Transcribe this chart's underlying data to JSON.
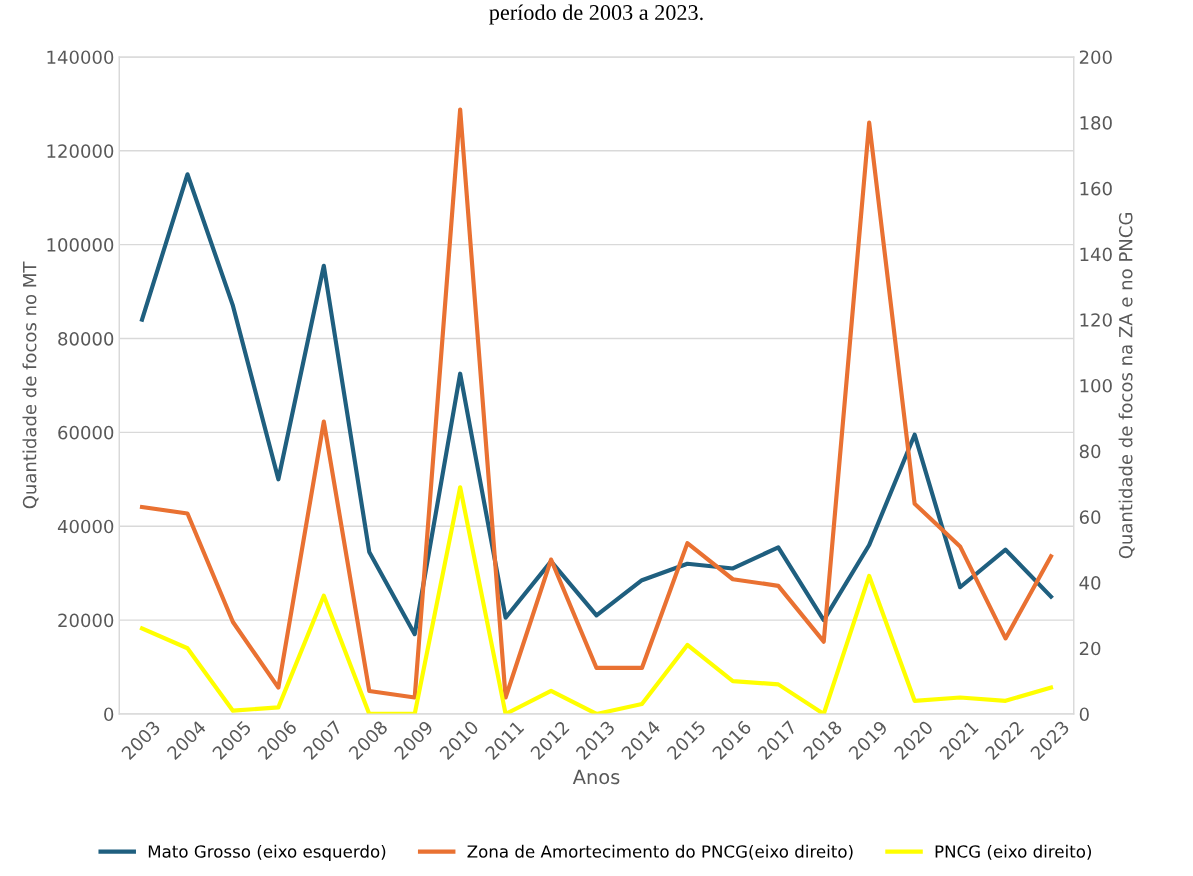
{
  "chart_data": {
    "type": "line",
    "title": "período de 2003 a 2023.",
    "xlabel": "Anos",
    "ylabel": "Quantidade de focos no MT",
    "y2label": "Quantidade de focos na ZA e no PNCG",
    "categories": [
      "2003",
      "2004",
      "2005",
      "2006",
      "2007",
      "2008",
      "2009",
      "2010",
      "2011",
      "2012",
      "2013",
      "2014",
      "2015",
      "2016",
      "2017",
      "2018",
      "2019",
      "2020",
      "2021",
      "2022",
      "2023"
    ],
    "series": [
      {
        "name": "Mato Grosso (eixo esquerdo)",
        "color": "#1f5f7f",
        "values": [
          84000,
          115000,
          87000,
          50000,
          95500,
          34500,
          17000,
          72500,
          20500,
          32500,
          21000,
          28500,
          32000,
          31000,
          35500,
          20000,
          36000,
          59500,
          27000,
          35000,
          25000
        ]
      },
      {
        "name": "Zona de Amortecimento do PNCG(eixo direito)",
        "color": "#e97132",
        "axis": "y2",
        "values": [
          63,
          61,
          28,
          8,
          89,
          7,
          5,
          184,
          5,
          47,
          14,
          14,
          52,
          41,
          39,
          22,
          180,
          64,
          51,
          23,
          48
        ]
      },
      {
        "name": "PNCG (eixo direito)",
        "color": "#ffff00",
        "axis": "y2",
        "values": [
          26,
          20,
          1,
          2,
          36,
          0,
          0,
          69,
          0,
          7,
          0,
          3,
          21,
          10,
          9,
          0,
          42,
          4,
          5,
          4,
          8
        ]
      }
    ],
    "ylim": [
      0,
      140000
    ],
    "yticks": [
      0,
      20000,
      40000,
      60000,
      80000,
      100000,
      120000,
      140000
    ],
    "y2lim": [
      0,
      200
    ],
    "y2ticks": [
      0,
      20,
      40,
      60,
      80,
      100,
      120,
      140,
      160,
      180,
      200
    ],
    "grid": "y",
    "legend": "bottom",
    "marker": "none",
    "line_style": "solid"
  }
}
